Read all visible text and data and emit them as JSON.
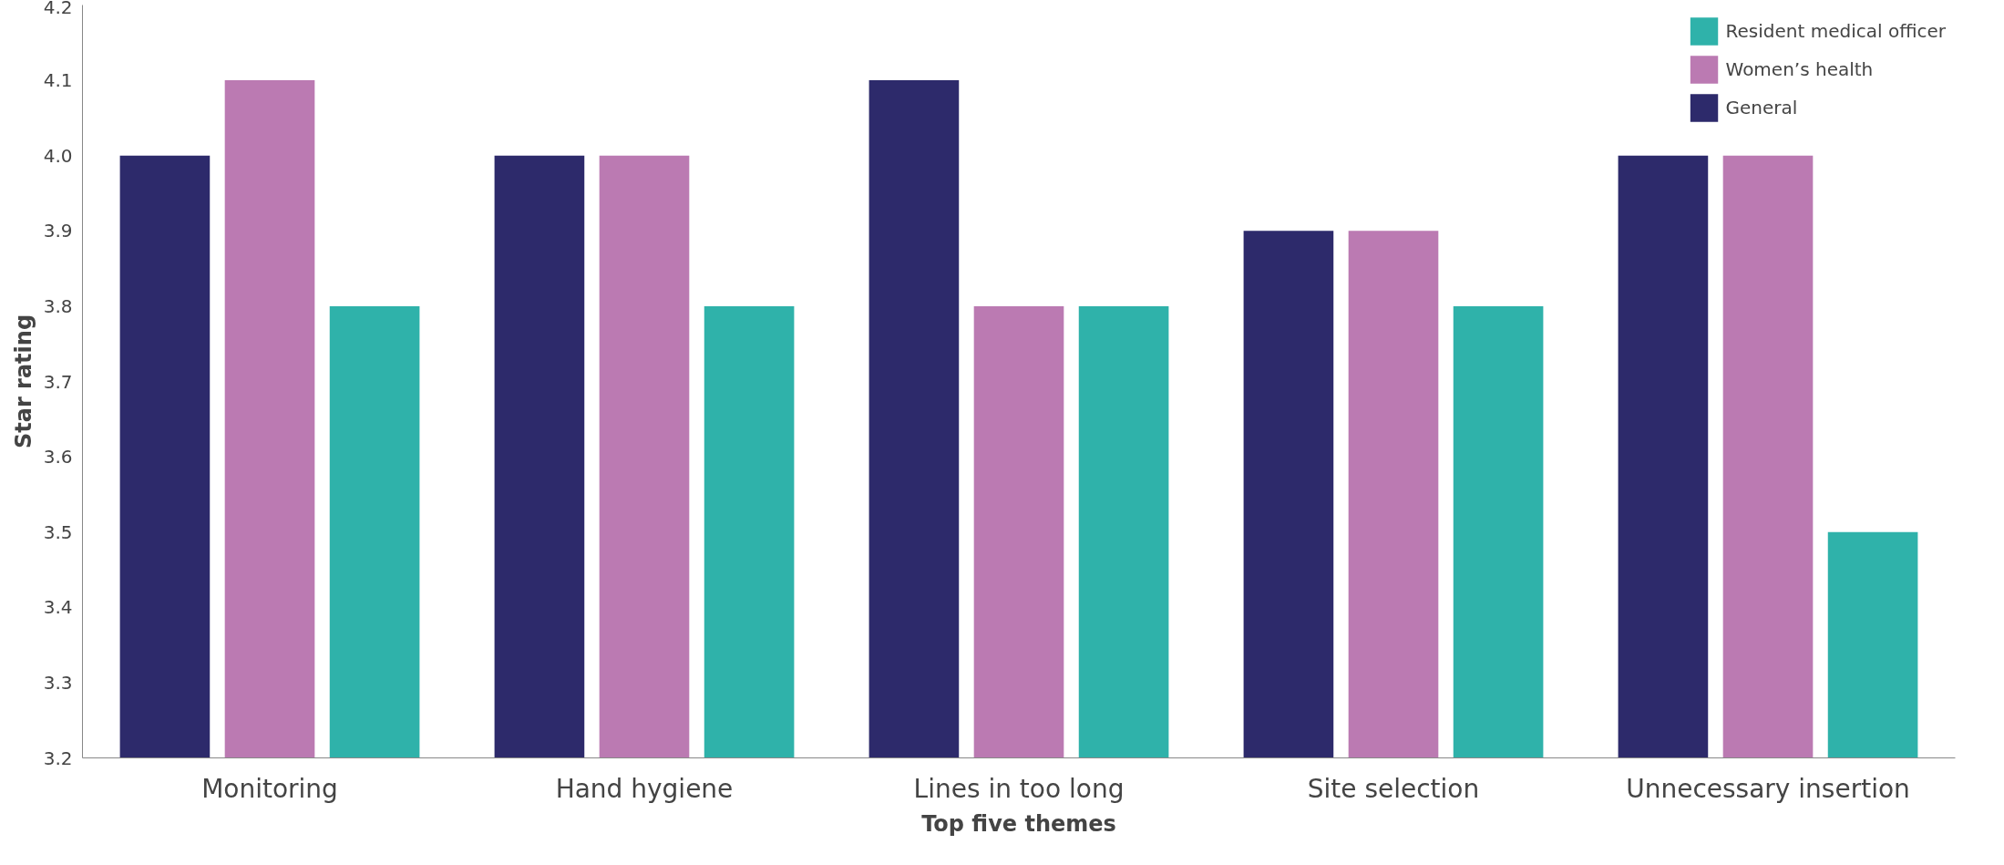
{
  "chart_data": {
    "type": "bar",
    "xlabel": "Top five themes",
    "ylabel": "Star rating",
    "categories": [
      "Monitoring",
      "Hand hygiene",
      "Lines in too long",
      "Site selection",
      "Unnecessary insertion"
    ],
    "series": [
      {
        "name": "General",
        "color": "#2d2a6b",
        "values": [
          4.0,
          4.0,
          4.1,
          3.9,
          4.0
        ]
      },
      {
        "name": "Women’s health",
        "color": "#bb7ab2",
        "values": [
          4.1,
          4.0,
          3.8,
          3.9,
          4.0
        ]
      },
      {
        "name": "Resident medical officer",
        "color": "#2fb2aa",
        "values": [
          3.8,
          3.8,
          3.8,
          3.8,
          3.5
        ]
      }
    ],
    "ylim": [
      3.2,
      4.2
    ],
    "yticks": [
      3.2,
      3.3,
      3.4,
      3.5,
      3.6,
      3.7,
      3.8,
      3.9,
      {
        "value": 4.0,
        "label": "4.0"
      },
      4.1,
      4.2
    ],
    "grid": false,
    "legend": "top right"
  }
}
